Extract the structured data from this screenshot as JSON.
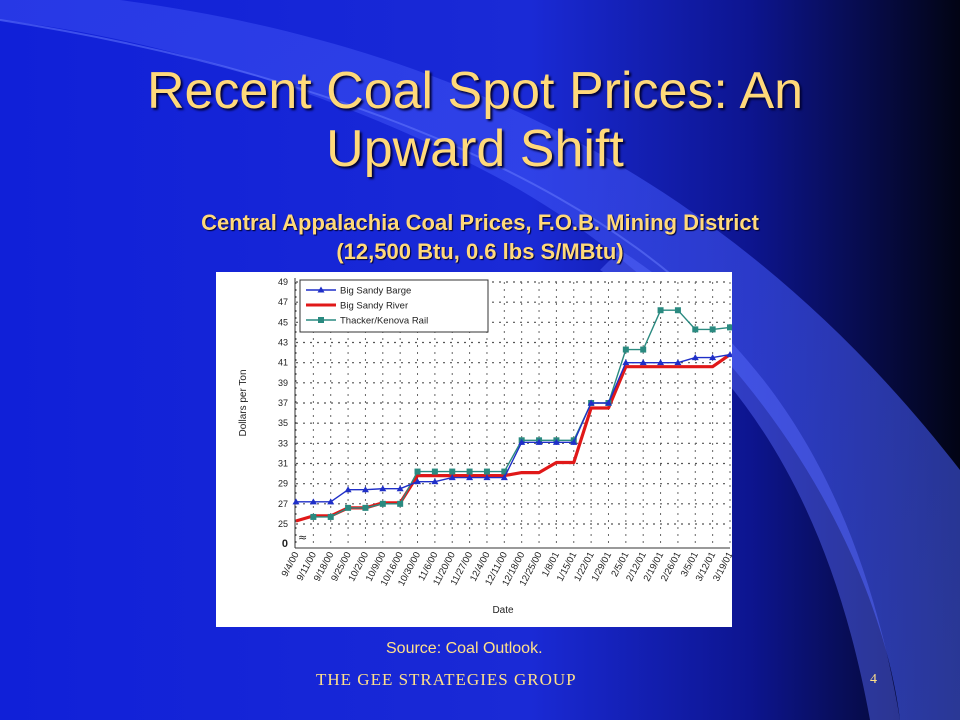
{
  "slide": {
    "title_line1": "Recent Coal Spot Prices: An",
    "title_line2": "Upward Shift",
    "subtitle_line1": "Central Appalachia Coal Prices, F.O.B. Mining District",
    "subtitle_line2": "(12,500 Btu, 0.6 lbs S/MBtu)",
    "source": "Source: Coal Outlook.",
    "footer": "THE GEE STRATEGIES   GROUP",
    "page_number": "4"
  },
  "colors": {
    "title_text": "#ffd97a",
    "slide_blue": "#1a2ad6",
    "barge_series": "#1f2fc8",
    "river_series": "#e01818",
    "rail_series": "#2a8a80"
  },
  "chart_data": {
    "type": "line",
    "xlabel": "Date",
    "ylabel": "Dollars per Ton",
    "ylim": [
      25,
      49
    ],
    "y_ticks": [
      "49",
      "47",
      "45",
      "43",
      "41",
      "39",
      "37",
      "35",
      "33",
      "31",
      "29",
      "27",
      "25",
      "0"
    ],
    "y_axis_break": true,
    "grid": true,
    "legend_position": "top-left",
    "categories": [
      "9/4/00",
      "9/11/00",
      "9/18/00",
      "9/25/00",
      "10/2/00",
      "10/9/00",
      "10/16/00",
      "10/30/00",
      "11/6/00",
      "11/20/00",
      "11/27/00",
      "12/4/00",
      "12/11/00",
      "12/18/00",
      "12/25/00",
      "1/8/01",
      "1/15/01",
      "1/22/01",
      "1/29/01",
      "2/5/01",
      "2/12/01",
      "2/19/01",
      "2/26/01",
      "3/5/01",
      "3/12/01",
      "3/19/01"
    ],
    "series": [
      {
        "name": "Big Sandy Barge",
        "marker": "triangle",
        "values": [
          27.2,
          27.2,
          27.2,
          28.4,
          28.4,
          28.5,
          28.5,
          29.2,
          29.2,
          29.6,
          29.6,
          29.6,
          29.6,
          33.1,
          33.1,
          33.1,
          33.1,
          37.0,
          37.0,
          41.0,
          41.0,
          41.0,
          41.0,
          41.5,
          41.5,
          41.8
        ]
      },
      {
        "name": "Big Sandy River",
        "marker": "none",
        "values": [
          25.3,
          25.8,
          25.8,
          26.6,
          26.6,
          27.1,
          27.1,
          29.8,
          29.8,
          29.8,
          29.8,
          29.8,
          29.8,
          30.1,
          30.1,
          31.1,
          31.1,
          36.5,
          36.5,
          40.6,
          40.6,
          40.6,
          40.6,
          40.6,
          40.6,
          41.8
        ]
      },
      {
        "name": "Thacker/Kenova Rail",
        "marker": "square",
        "values": [
          null,
          25.7,
          25.7,
          26.6,
          26.6,
          27.0,
          27.0,
          30.2,
          30.2,
          30.2,
          30.2,
          30.2,
          30.2,
          33.3,
          33.3,
          33.3,
          33.3,
          37.0,
          37.0,
          42.3,
          42.3,
          46.2,
          46.2,
          44.3,
          44.3,
          44.5
        ]
      }
    ]
  }
}
